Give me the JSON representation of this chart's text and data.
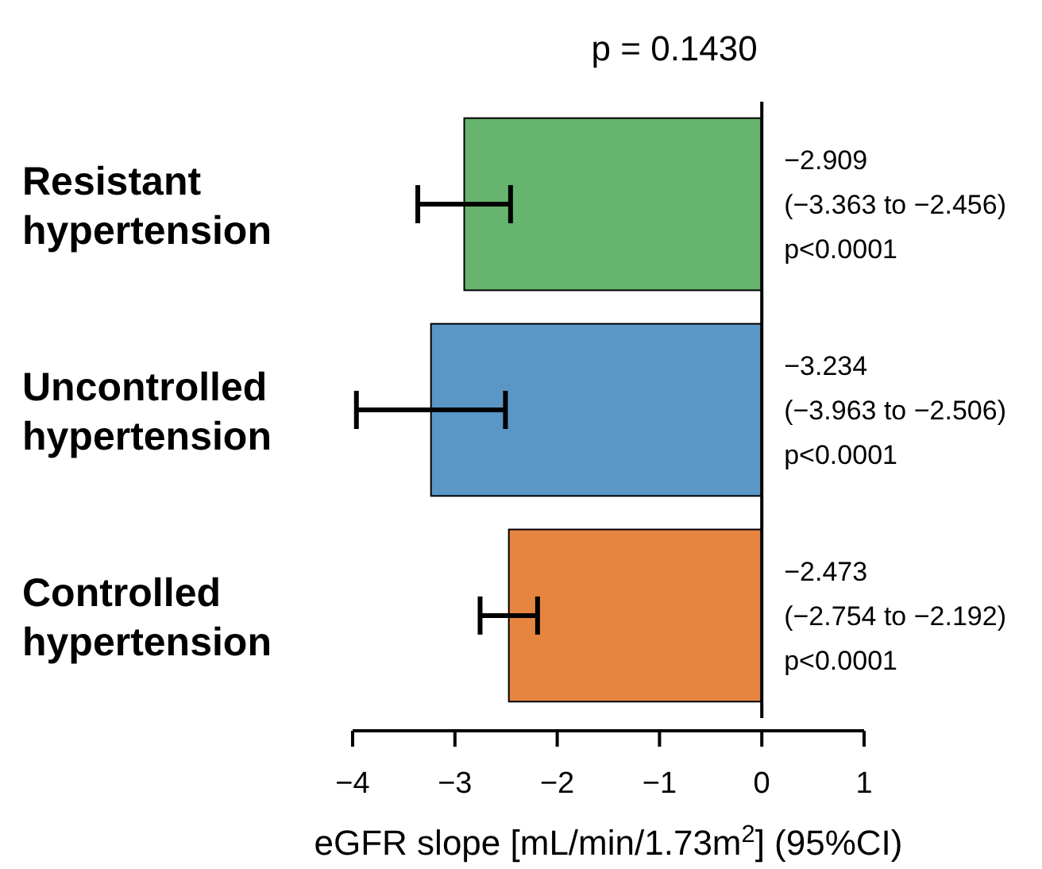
{
  "chart_data": {
    "type": "bar",
    "orientation": "horizontal",
    "title": "p = 0.1430",
    "xlabel": "eGFR slope [mL/min/1.73m$^{2}$] (95%CI)",
    "categories": [
      "Resistant hypertension",
      "Uncontrolled hypertension",
      "Controlled hypertension"
    ],
    "values": [
      -2.909,
      -3.234,
      -2.473
    ],
    "colors": [
      "#66b46e",
      "#5a96c6",
      "#e6853f"
    ],
    "errors": [
      [
        -3.363,
        -2.456
      ],
      [
        -3.963,
        -2.506
      ],
      [
        -2.754,
        -2.192
      ]
    ],
    "value_labels": [
      "−2.909",
      "−3.234",
      "−2.473"
    ],
    "annotations": [
      "(−3.363 to −2.456)\np<0.0001",
      "(−3.963 to −2.506)\np<0.0001",
      "(−2.754 to −2.192)\np<0.0001"
    ],
    "xlim": [
      -4,
      1
    ],
    "xticks": [
      {
        "value": -4,
        "label": "−4"
      },
      {
        "value": -3,
        "label": "−3"
      },
      {
        "value": -2,
        "label": "−2"
      },
      {
        "value": -1,
        "label": "−1"
      },
      0,
      1
    ]
  }
}
